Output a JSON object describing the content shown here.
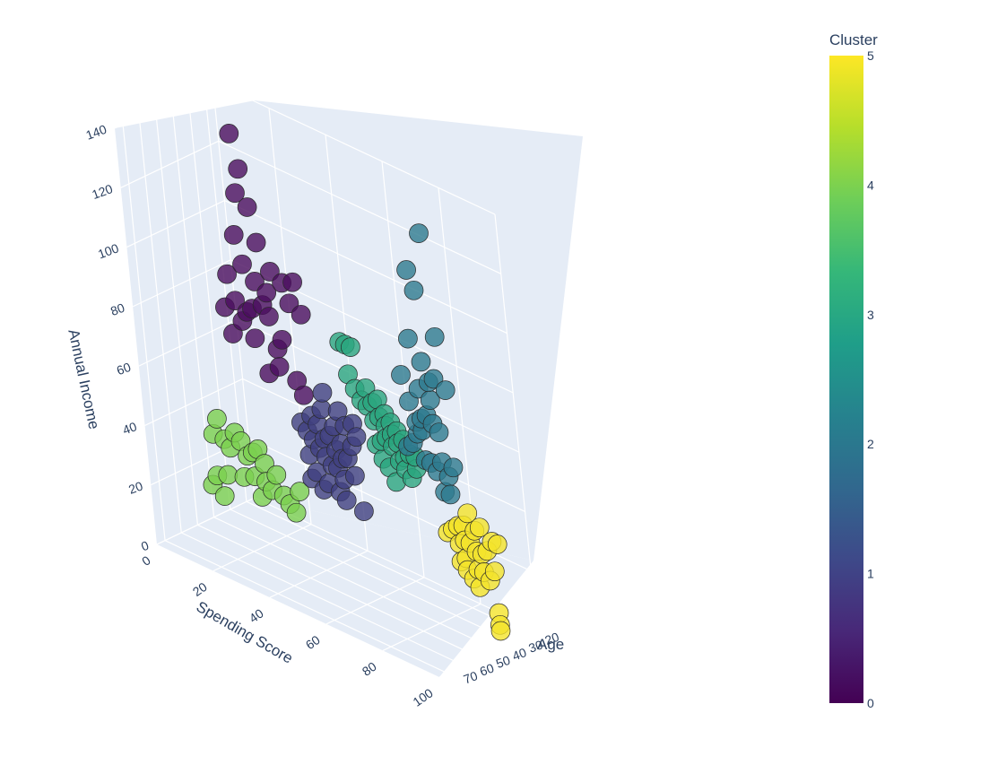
{
  "chart_data": {
    "type": "scatter3d",
    "title": "",
    "axes": {
      "x": {
        "label": "Spending Score",
        "range": [
          0,
          100
        ],
        "ticks": [
          20,
          40,
          60,
          80,
          100
        ]
      },
      "y": {
        "label": "Age",
        "range": [
          15,
          75
        ],
        "ticks": [
          20,
          30,
          40,
          50,
          60,
          70
        ]
      },
      "z": {
        "label": "Annual Income",
        "range": [
          0,
          140
        ],
        "ticks": [
          0,
          20,
          40,
          60,
          80,
          100,
          120,
          140
        ]
      }
    },
    "grid": true,
    "colorbar": {
      "title": "Cluster",
      "range": [
        0,
        5
      ],
      "ticks": [
        0,
        1,
        2,
        3,
        4,
        5
      ],
      "colorscale": [
        "#440154",
        "#482878",
        "#3e4989",
        "#31688e",
        "#26828e",
        "#1f9e89",
        "#35b779",
        "#6ece58",
        "#b5de2b",
        "#fde725"
      ]
    },
    "cluster_colors": [
      "#4a0e5e",
      "#40407f",
      "#2e7a8e",
      "#2aa57e",
      "#7bd04f",
      "#f4e32a"
    ],
    "series": [
      {
        "name": "0",
        "points": [
          [
            20,
            40,
            138
          ],
          [
            22,
            40,
            127
          ],
          [
            20,
            40,
            118
          ],
          [
            24,
            40,
            115
          ],
          [
            18,
            40,
            103
          ],
          [
            26,
            40,
            104
          ],
          [
            30,
            40,
            96
          ],
          [
            20,
            40,
            94
          ],
          [
            24,
            40,
            90
          ],
          [
            28,
            40,
            88
          ],
          [
            14,
            40,
            88
          ],
          [
            26,
            40,
            83
          ],
          [
            22,
            40,
            80
          ],
          [
            16,
            40,
            80
          ],
          [
            28,
            40,
            80
          ],
          [
            20,
            40,
            78
          ],
          [
            12,
            40,
            76
          ],
          [
            18,
            40,
            74
          ],
          [
            32,
            40,
            74
          ],
          [
            22,
            40,
            70
          ],
          [
            30,
            40,
            70
          ],
          [
            34,
            40,
            94
          ],
          [
            36,
            40,
            88
          ],
          [
            14,
            40,
            68
          ],
          [
            30,
            40,
            64
          ],
          [
            38,
            40,
            96
          ],
          [
            40,
            40,
            86
          ],
          [
            26,
            40,
            60
          ],
          [
            36,
            40,
            62
          ],
          [
            38,
            40,
            58
          ]
        ]
      },
      {
        "name": "1",
        "points": [
          [
            45,
            40,
            62
          ],
          [
            50,
            40,
            58
          ],
          [
            44,
            40,
            56
          ],
          [
            55,
            40,
            56
          ],
          [
            52,
            40,
            54
          ],
          [
            56,
            40,
            52
          ],
          [
            48,
            40,
            52
          ],
          [
            40,
            40,
            52
          ],
          [
            42,
            40,
            50
          ],
          [
            46,
            40,
            48
          ],
          [
            50,
            40,
            47
          ],
          [
            54,
            40,
            48
          ],
          [
            36,
            40,
            48
          ],
          [
            38,
            40,
            46
          ],
          [
            44,
            40,
            46
          ],
          [
            48,
            40,
            44
          ],
          [
            40,
            40,
            44
          ],
          [
            42,
            40,
            42
          ],
          [
            50,
            40,
            42
          ],
          [
            52,
            40,
            43
          ],
          [
            44,
            40,
            40
          ],
          [
            46,
            40,
            38
          ],
          [
            48,
            40,
            38
          ],
          [
            38,
            40,
            38
          ],
          [
            54,
            40,
            38
          ],
          [
            50,
            40,
            35
          ],
          [
            40,
            40,
            33
          ],
          [
            44,
            40,
            31
          ],
          [
            48,
            40,
            30
          ],
          [
            42,
            40,
            28
          ],
          [
            50,
            40,
            28
          ],
          [
            56,
            40,
            27
          ],
          [
            38,
            40,
            30
          ]
        ]
      },
      {
        "name": "2",
        "points": [
          [
            90,
            45,
            137
          ],
          [
            84,
            45,
            122
          ],
          [
            86,
            45,
            116
          ],
          [
            92,
            45,
            103
          ],
          [
            82,
            45,
            98
          ],
          [
            86,
            45,
            92
          ],
          [
            90,
            45,
            88
          ],
          [
            94,
            45,
            86
          ],
          [
            78,
            45,
            84
          ],
          [
            84,
            45,
            82
          ],
          [
            88,
            45,
            80
          ],
          [
            80,
            45,
            76
          ],
          [
            86,
            45,
            74
          ],
          [
            88,
            45,
            72
          ],
          [
            90,
            45,
            70
          ],
          [
            82,
            45,
            66
          ],
          [
            84,
            45,
            68
          ],
          [
            80,
            45,
            62
          ],
          [
            84,
            45,
            58
          ],
          [
            86,
            45,
            58
          ],
          [
            90,
            45,
            60
          ],
          [
            78,
            45,
            60
          ],
          [
            88,
            45,
            56
          ],
          [
            92,
            45,
            56
          ],
          [
            94,
            45,
            60
          ],
          [
            82,
            45,
            70
          ],
          [
            84,
            45,
            72
          ],
          [
            90,
            45,
            50
          ],
          [
            92,
            45,
            50
          ],
          [
            88,
            45,
            86
          ]
        ]
      },
      {
        "name": "3",
        "points": [
          [
            50,
            35,
            80
          ],
          [
            52,
            35,
            80
          ],
          [
            54,
            35,
            80
          ],
          [
            52,
            35,
            70
          ],
          [
            54,
            35,
            66
          ],
          [
            56,
            35,
            63
          ],
          [
            58,
            35,
            68
          ],
          [
            58,
            35,
            62
          ],
          [
            60,
            35,
            64
          ],
          [
            60,
            35,
            58
          ],
          [
            62,
            35,
            66
          ],
          [
            62,
            35,
            60
          ],
          [
            64,
            35,
            62
          ],
          [
            64,
            35,
            58
          ],
          [
            64,
            35,
            54
          ],
          [
            66,
            35,
            60
          ],
          [
            66,
            35,
            56
          ],
          [
            66,
            35,
            52
          ],
          [
            68,
            35,
            58
          ],
          [
            68,
            35,
            54
          ],
          [
            70,
            35,
            56
          ],
          [
            70,
            35,
            50
          ],
          [
            72,
            35,
            52
          ],
          [
            74,
            35,
            48
          ],
          [
            60,
            35,
            50
          ],
          [
            62,
            35,
            46
          ],
          [
            64,
            35,
            44
          ],
          [
            66,
            35,
            40
          ],
          [
            70,
            35,
            46
          ],
          [
            72,
            35,
            44
          ],
          [
            74,
            35,
            52
          ],
          [
            68,
            35,
            48
          ],
          [
            62,
            35,
            52
          ]
        ]
      },
      {
        "name": "4",
        "points": [
          [
            8,
            45,
            38
          ],
          [
            6,
            45,
            32
          ],
          [
            10,
            45,
            32
          ],
          [
            12,
            45,
            30
          ],
          [
            14,
            45,
            36
          ],
          [
            16,
            45,
            34
          ],
          [
            18,
            45,
            30
          ],
          [
            20,
            45,
            32
          ],
          [
            22,
            45,
            34
          ],
          [
            24,
            45,
            30
          ],
          [
            20,
            45,
            24
          ],
          [
            16,
            45,
            22
          ],
          [
            10,
            45,
            20
          ],
          [
            6,
            45,
            18
          ],
          [
            4,
            45,
            14
          ],
          [
            8,
            45,
            12
          ],
          [
            22,
            45,
            18
          ],
          [
            26,
            45,
            22
          ],
          [
            30,
            45,
            22
          ],
          [
            32,
            45,
            20
          ],
          [
            34,
            45,
            18
          ],
          [
            36,
            45,
            26
          ],
          [
            28,
            45,
            28
          ],
          [
            24,
            45,
            24
          ]
        ]
      },
      {
        "name": "5",
        "points": [
          [
            88,
            30,
            38
          ],
          [
            92,
            30,
            35
          ],
          [
            86,
            30,
            33
          ],
          [
            90,
            30,
            33
          ],
          [
            84,
            30,
            32
          ],
          [
            96,
            30,
            32
          ],
          [
            98,
            30,
            32
          ],
          [
            86,
            30,
            28
          ],
          [
            88,
            30,
            28
          ],
          [
            90,
            30,
            26
          ],
          [
            92,
            30,
            26
          ],
          [
            94,
            30,
            28
          ],
          [
            84,
            30,
            26
          ],
          [
            86,
            30,
            22
          ],
          [
            90,
            30,
            20
          ],
          [
            92,
            30,
            20
          ],
          [
            94,
            30,
            18
          ],
          [
            96,
            30,
            22
          ],
          [
            84,
            30,
            20
          ],
          [
            86,
            30,
            18
          ],
          [
            88,
            30,
            16
          ],
          [
            90,
            30,
            14
          ],
          [
            96,
            30,
            8
          ],
          [
            96,
            30,
            4
          ],
          [
            96,
            30,
            2
          ],
          [
            80,
            30,
            28
          ],
          [
            82,
            30,
            30
          ]
        ]
      }
    ]
  }
}
